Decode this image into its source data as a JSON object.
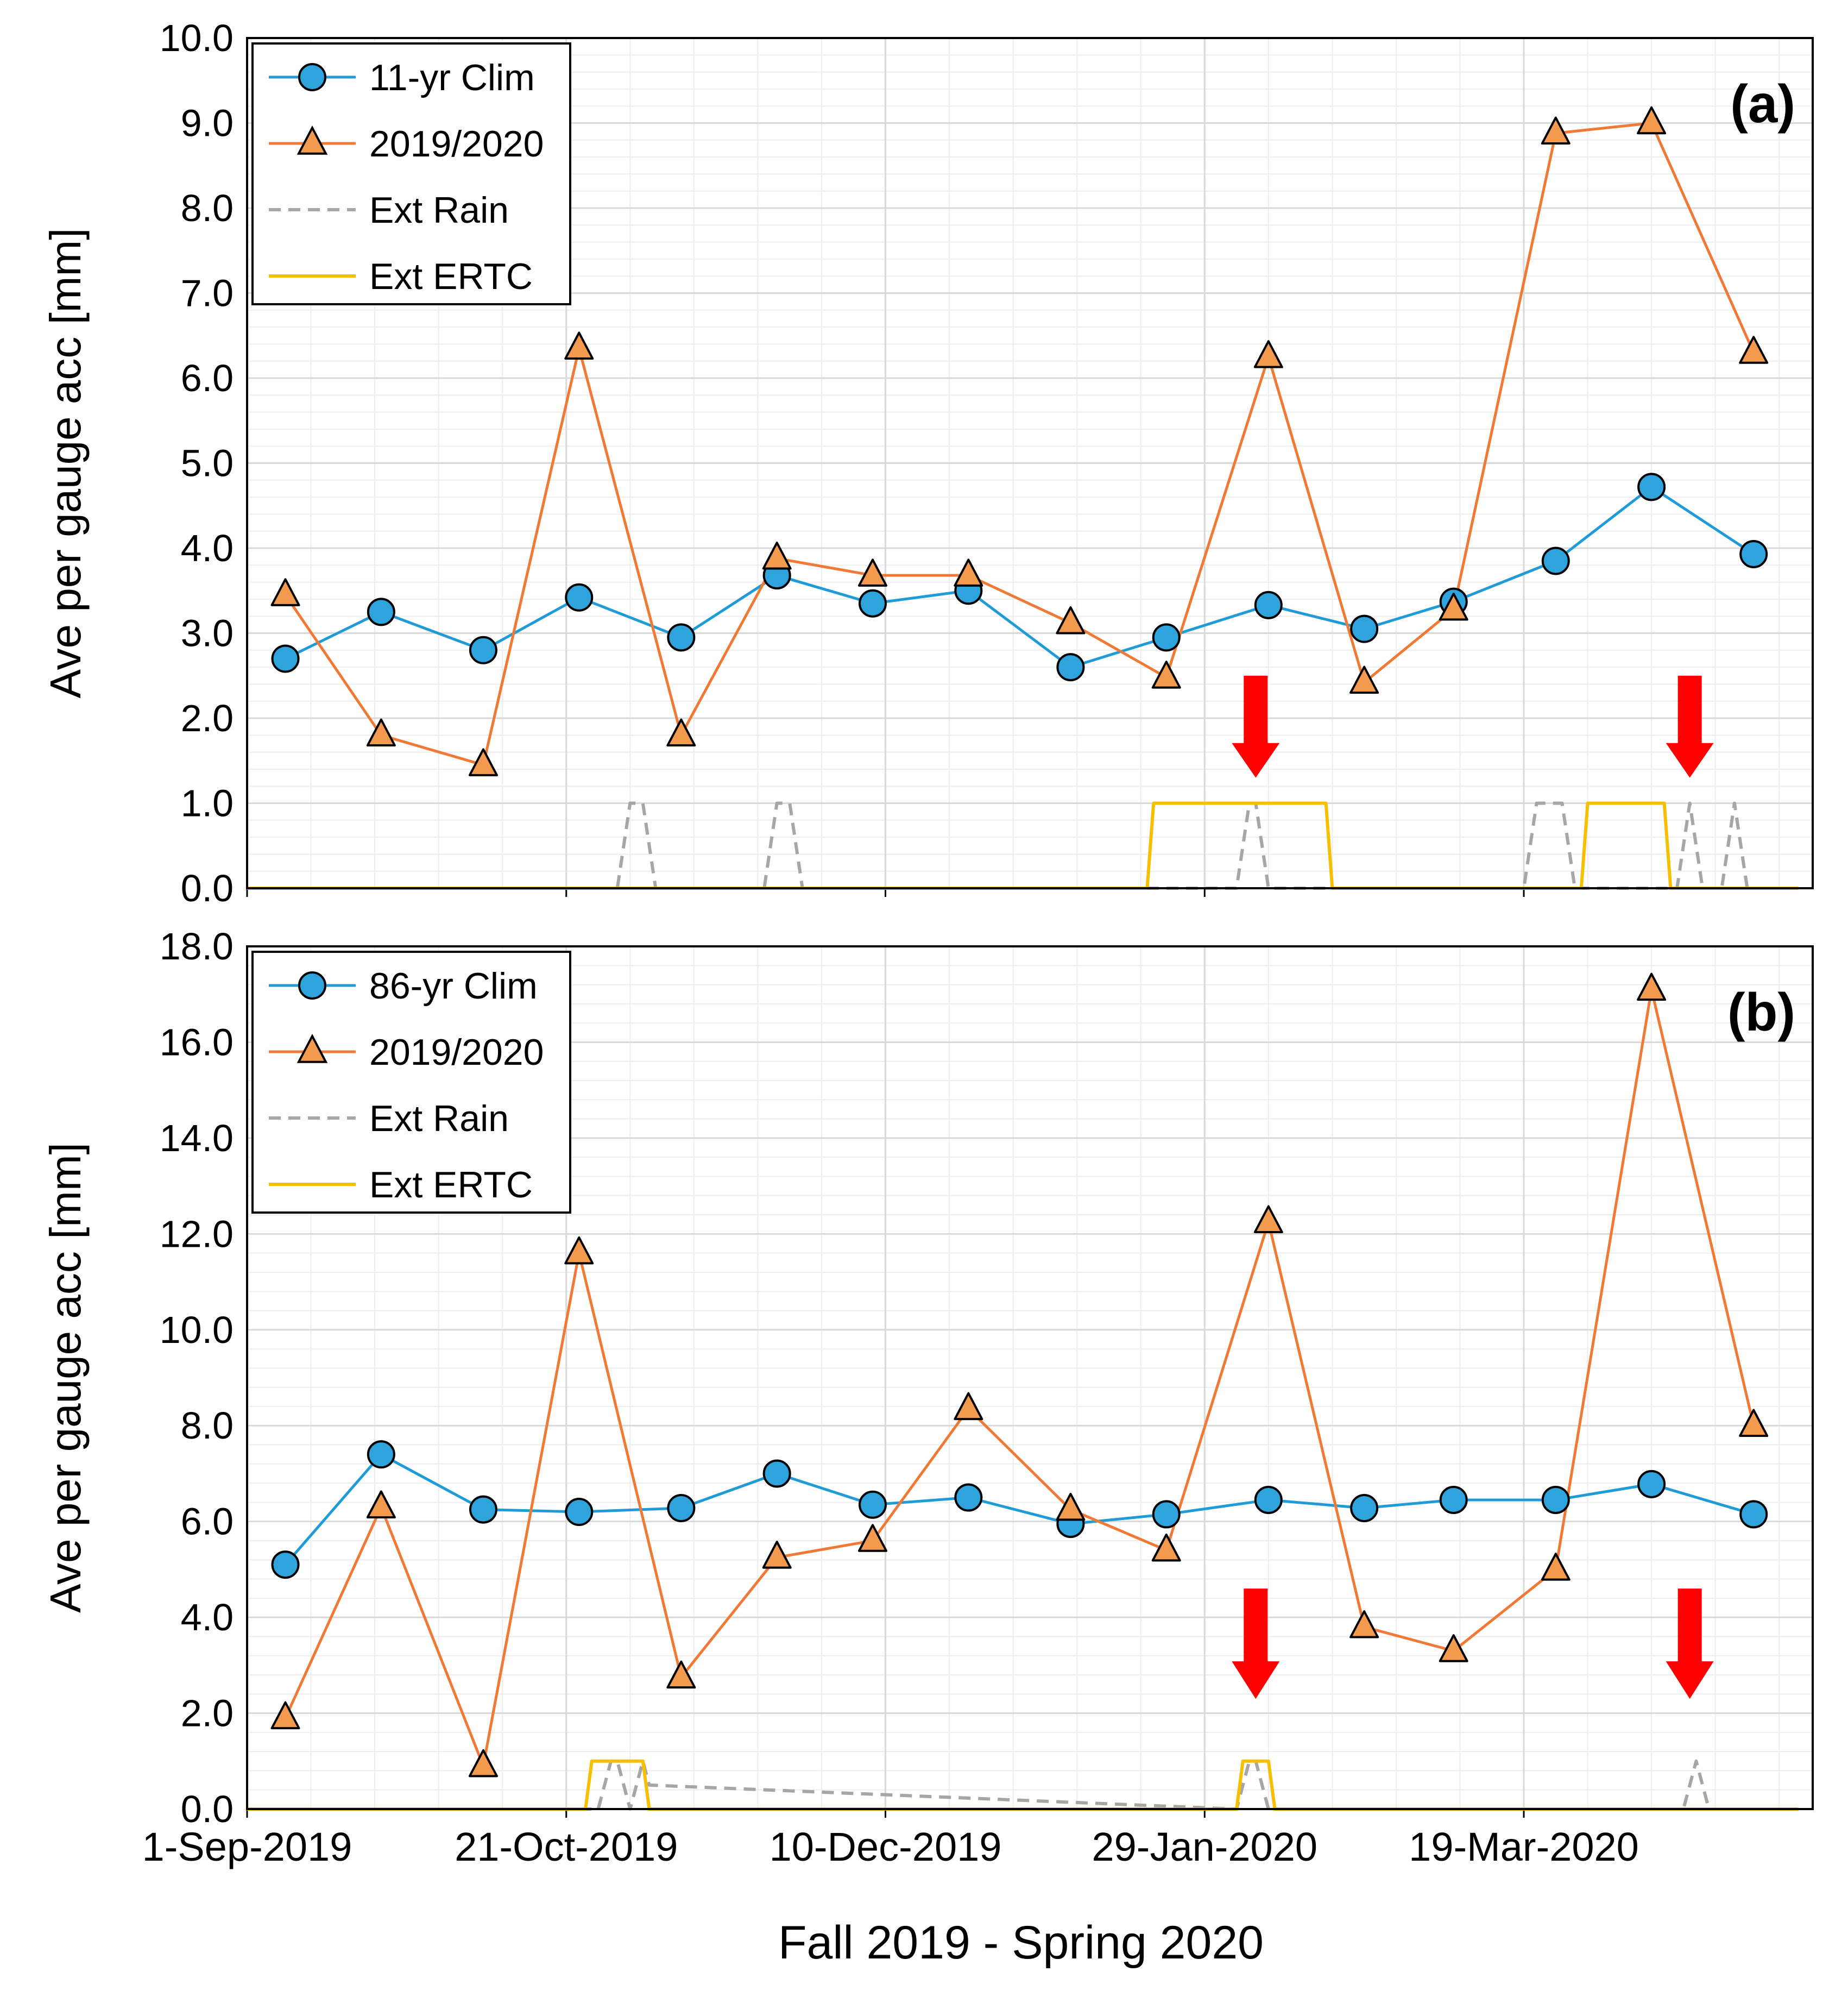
{
  "figure": {
    "xlabel": "Fall 2019 - Spring 2020",
    "x_tick_labels": [
      "1-Sep-2019",
      "21-Oct-2019",
      "10-Dec-2019",
      "29-Jan-2020",
      "19-Mar-2020"
    ],
    "colors": {
      "clim": "#1F9BD7",
      "clim_marker": "#2FA3DC",
      "season": "#F07A35",
      "season_marker": "#F39A4F",
      "ext_rain": "#A6A6A6",
      "ext_ertc": "#F5C000",
      "arrow": "#FF0000",
      "grid": "#D9D9D9"
    }
  },
  "chart_data": [
    {
      "type": "line",
      "panel_label": "(a)",
      "ylabel": "Ave per gauge acc [mm]",
      "xlabel": "Fall 2019 - Spring 2020",
      "ylim": [
        0,
        10
      ],
      "y_tick_labels": [
        "0.0",
        "1.0",
        "2.0",
        "3.0",
        "4.0",
        "5.0",
        "6.0",
        "7.0",
        "8.0",
        "9.0",
        "10.0"
      ],
      "x_unit": "days since 1-Sep-2019",
      "xlim": [
        0,
        243
      ],
      "legend_location": "top-left",
      "legend": [
        "11-yr Clim",
        "2019/2020",
        "Ext Rain",
        "Ext ERTC"
      ],
      "series": [
        {
          "name": "11-yr Clim",
          "marker": "circle",
          "x": [
            6,
            21,
            37,
            52,
            68,
            83,
            98,
            113,
            129,
            144,
            160,
            175,
            189,
            205,
            220,
            236
          ],
          "values": [
            2.7,
            3.25,
            2.8,
            3.42,
            2.95,
            3.68,
            3.35,
            3.5,
            2.6,
            2.95,
            3.33,
            3.05,
            3.37,
            3.85,
            4.72,
            3.93
          ]
        },
        {
          "name": "2019/2020",
          "marker": "triangle",
          "x": [
            6,
            21,
            37,
            52,
            68,
            83,
            98,
            113,
            129,
            144,
            160,
            175,
            189,
            205,
            220,
            236
          ],
          "values": [
            3.45,
            1.8,
            1.45,
            6.35,
            1.8,
            3.88,
            3.68,
            3.68,
            3.12,
            2.48,
            6.25,
            2.42,
            3.28,
            8.88,
            9.0,
            6.3
          ]
        },
        {
          "name": "Ext Rain",
          "style": "dashed",
          "x": [
            0,
            58,
            59,
            60,
            61,
            62,
            63,
            64,
            81,
            82,
            83,
            84,
            85,
            86,
            87,
            155,
            156,
            157,
            158,
            159,
            160,
            200,
            201,
            202,
            203,
            206,
            207,
            208,
            224,
            225,
            226,
            227,
            228,
            231,
            232,
            233,
            234,
            235,
            243
          ],
          "values": [
            0,
            0,
            0.5,
            1,
            1,
            1,
            0.5,
            0,
            0,
            0.5,
            1,
            1,
            1,
            0.5,
            0,
            0,
            0.5,
            1,
            1,
            0.5,
            0,
            0,
            0.5,
            1,
            1,
            1,
            0.5,
            0,
            0,
            0.5,
            1,
            0.5,
            0,
            0,
            0.5,
            1,
            0.5,
            0,
            0
          ]
        },
        {
          "name": "Ext ERTC",
          "style": "solid",
          "x": [
            0,
            141,
            142,
            169,
            170,
            209,
            210,
            222,
            223,
            243
          ],
          "values": [
            0,
            0,
            1,
            1,
            0,
            0,
            1,
            1,
            0,
            0
          ]
        }
      ],
      "annotations": [
        {
          "type": "arrow-down",
          "x": 158,
          "y_top": 2.5,
          "y_bottom": 1.3
        },
        {
          "type": "arrow-down",
          "x": 226,
          "y_top": 2.5,
          "y_bottom": 1.3
        }
      ]
    },
    {
      "type": "line",
      "panel_label": "(b)",
      "ylabel": "Ave per gauge acc [mm]",
      "xlabel": "Fall 2019 - Spring 2020",
      "ylim": [
        0,
        18
      ],
      "y_tick_labels": [
        "0.0",
        "2.0",
        "4.0",
        "6.0",
        "8.0",
        "10.0",
        "12.0",
        "14.0",
        "16.0",
        "18.0"
      ],
      "x_unit": "days since 1-Sep-2019",
      "xlim": [
        0,
        243
      ],
      "legend_location": "top-left",
      "legend": [
        "86-yr Clim",
        "2019/2020",
        "Ext Rain",
        "Ext ERTC"
      ],
      "series": [
        {
          "name": "86-yr Clim",
          "marker": "circle",
          "x": [
            6,
            21,
            37,
            52,
            68,
            83,
            98,
            113,
            129,
            144,
            160,
            175,
            189,
            205,
            220,
            236
          ],
          "values": [
            5.1,
            7.4,
            6.25,
            6.2,
            6.28,
            7.0,
            6.35,
            6.5,
            5.95,
            6.15,
            6.45,
            6.28,
            6.45,
            6.45,
            6.78,
            6.15
          ]
        },
        {
          "name": "2019/2020",
          "marker": "triangle",
          "x": [
            6,
            21,
            37,
            52,
            68,
            83,
            98,
            113,
            129,
            144,
            160,
            175,
            189,
            205,
            220,
            236
          ],
          "values": [
            1.9,
            6.3,
            0.9,
            11.6,
            2.75,
            5.25,
            5.6,
            8.35,
            6.25,
            5.4,
            12.25,
            3.8,
            3.3,
            5.0,
            17.1,
            8.0
          ]
        },
        {
          "name": "Ext Rain",
          "style": "dashed",
          "x": [
            0,
            55,
            56,
            57,
            58,
            59,
            60,
            61,
            62,
            63,
            155,
            156,
            157,
            158,
            159,
            160,
            225,
            226,
            227,
            228,
            229,
            243
          ],
          "values": [
            0,
            0,
            0.5,
            1,
            1,
            0.5,
            0,
            0.5,
            1,
            0.5,
            0,
            0.5,
            1,
            1,
            0.5,
            0,
            0,
            0.5,
            1,
            0.5,
            0,
            0
          ]
        },
        {
          "name": "Ext ERTC",
          "style": "solid",
          "x": [
            0,
            53,
            54,
            62,
            63,
            155,
            156,
            160,
            161,
            243
          ],
          "values": [
            0,
            0,
            1,
            1,
            0,
            0,
            1,
            1,
            0,
            0
          ]
        }
      ],
      "annotations": [
        {
          "type": "arrow-down",
          "x": 158,
          "y_top": 4.6,
          "y_bottom": 2.3
        },
        {
          "type": "arrow-down",
          "x": 226,
          "y_top": 4.6,
          "y_bottom": 2.3
        }
      ]
    }
  ]
}
